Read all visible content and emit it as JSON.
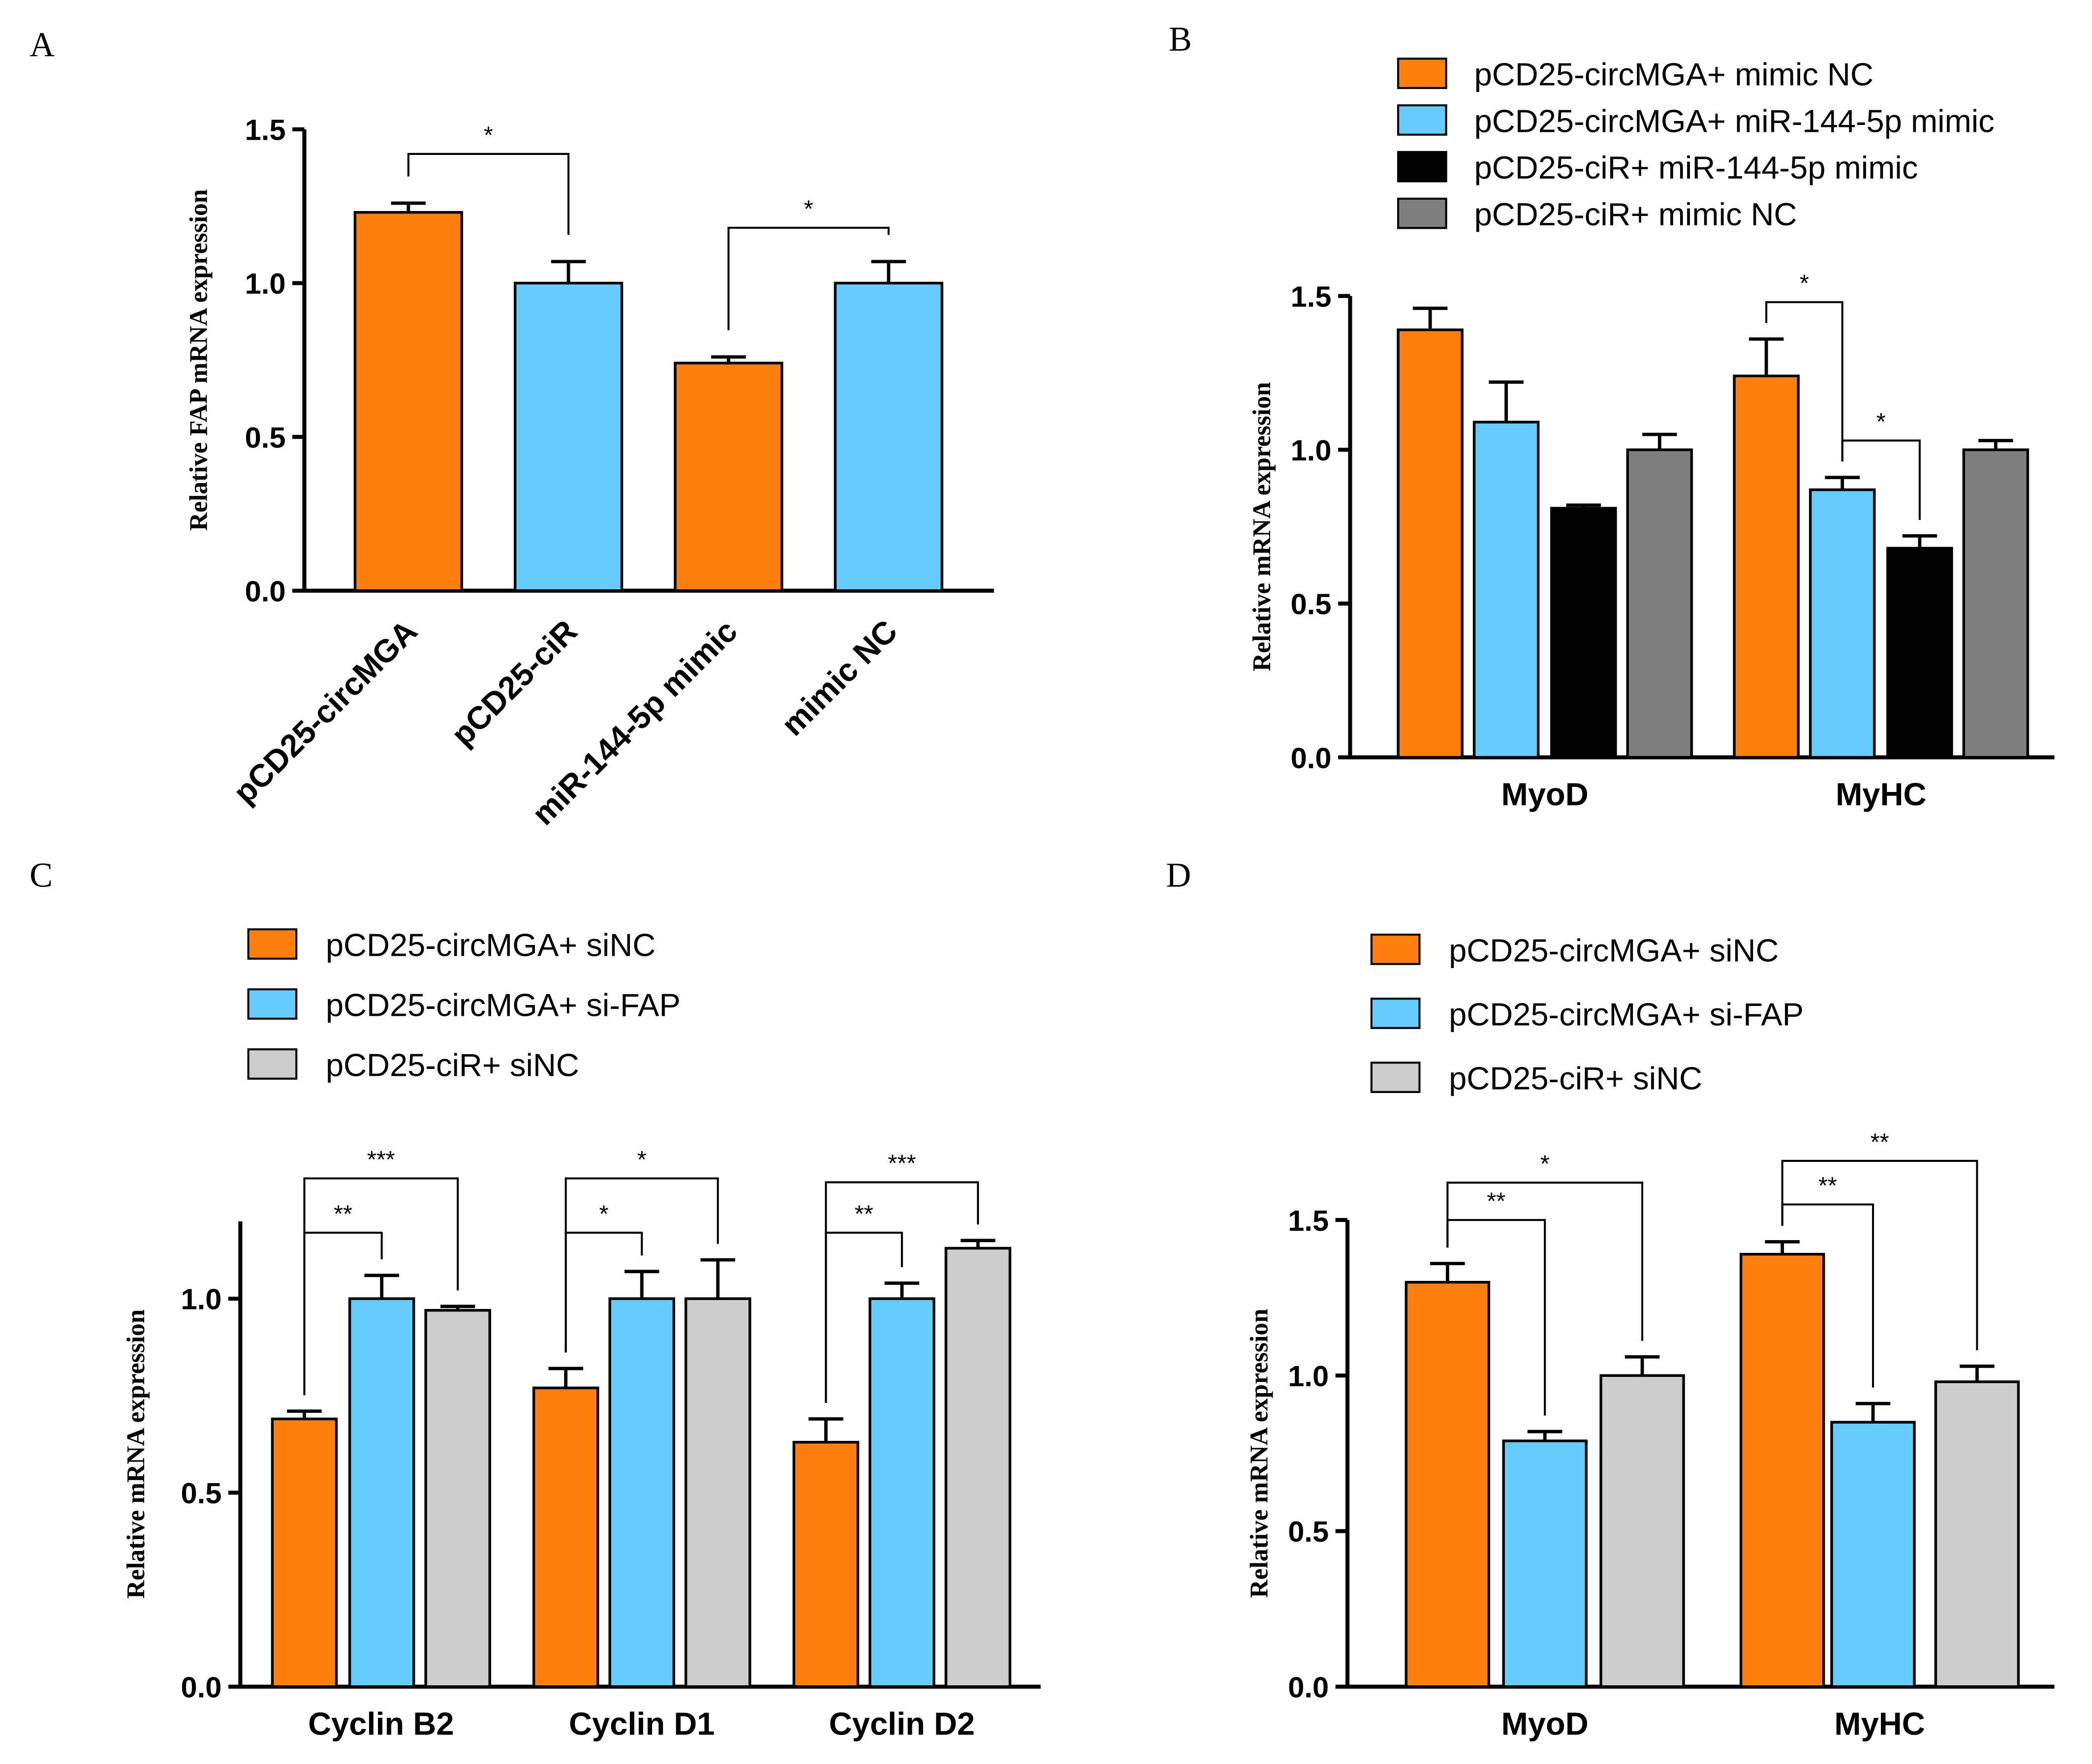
{
  "colors": {
    "orange": "#ff7f0e",
    "blue": "#66ccff",
    "black": "#000000",
    "darkgray": "#7f7f7f",
    "lightgray": "#cccccc"
  },
  "chart_data": [
    {
      "panel": "A",
      "type": "bar",
      "ylabel": "Relative FAP mRNA expression",
      "ylim": [
        0,
        1.5
      ],
      "yticks": [
        "0.0",
        "0.5",
        "1.0",
        "1.5"
      ],
      "categories": [
        "pCD25-circMGA",
        "pCD25-ciR",
        "miR-144-5p mimic",
        "mimic NC"
      ],
      "values": [
        1.23,
        1.0,
        0.74,
        1.0
      ],
      "errors": [
        0.03,
        0.07,
        0.02,
        0.07
      ],
      "bar_colors": [
        "orange",
        "blue",
        "orange",
        "blue"
      ],
      "significance": [
        {
          "from": 0,
          "to": 1,
          "level": 1.42,
          "label": "*"
        },
        {
          "from": 2,
          "to": 3,
          "level": 1.18,
          "label": "*"
        }
      ]
    },
    {
      "panel": "B",
      "type": "grouped-bar",
      "ylabel": "Relative mRNA expression",
      "ylim": [
        0,
        1.5
      ],
      "yticks": [
        "0.0",
        "0.5",
        "1.0",
        "1.5"
      ],
      "categories": [
        "MyoD",
        "MyHC"
      ],
      "series": [
        {
          "name": "pCD25-circMGA+ mimic NC",
          "color": "orange",
          "values": [
            1.39,
            1.24
          ],
          "errors": [
            0.07,
            0.12
          ]
        },
        {
          "name": "pCD25-circMGA+ miR-144-5p mimic",
          "color": "blue",
          "values": [
            1.09,
            0.87
          ],
          "errors": [
            0.13,
            0.04
          ]
        },
        {
          "name": "pCD25-ciR+ miR-144-5p mimic",
          "color": "black",
          "values": [
            0.81,
            0.68
          ],
          "errors": [
            0.01,
            0.04
          ]
        },
        {
          "name": "pCD25-ciR+ mimic NC",
          "color": "darkgray",
          "values": [
            1.0,
            1.0
          ],
          "errors": [
            0.05,
            0.03
          ]
        }
      ],
      "significance": [
        {
          "group": 1,
          "from": 0,
          "to": 1,
          "level": 1.48,
          "label": "*"
        },
        {
          "group": 1,
          "from": 1,
          "to": 2,
          "level": 1.03,
          "label": "*"
        }
      ]
    },
    {
      "panel": "C",
      "type": "grouped-bar",
      "ylabel": "Relative mRNA expression",
      "ylim": [
        0,
        1.2
      ],
      "yticks": [
        "0.0",
        "0.5",
        "1.0"
      ],
      "categories": [
        "Cyclin B2",
        "Cyclin D1",
        "Cyclin D2"
      ],
      "series": [
        {
          "name": "pCD25-circMGA+ siNC",
          "color": "orange",
          "values": [
            0.69,
            0.77,
            0.63
          ],
          "errors": [
            0.02,
            0.05,
            0.06
          ]
        },
        {
          "name": "pCD25-circMGA+ si-FAP",
          "color": "blue",
          "values": [
            1.0,
            1.0,
            1.0
          ],
          "errors": [
            0.06,
            0.07,
            0.04
          ]
        },
        {
          "name": "pCD25-ciR+ siNC",
          "color": "lightgray",
          "values": [
            0.97,
            1.0,
            1.13
          ],
          "errors": [
            0.01,
            0.1,
            0.02
          ]
        }
      ],
      "significance": [
        {
          "group": 0,
          "from": 0,
          "to": 1,
          "level": 1.17,
          "label": "**"
        },
        {
          "group": 0,
          "from": 0,
          "to": 2,
          "level": 1.31,
          "label": "***"
        },
        {
          "group": 1,
          "from": 0,
          "to": 1,
          "level": 1.17,
          "label": "*"
        },
        {
          "group": 1,
          "from": 0,
          "to": 2,
          "level": 1.31,
          "label": "*"
        },
        {
          "group": 2,
          "from": 0,
          "to": 1,
          "level": 1.17,
          "label": "**"
        },
        {
          "group": 2,
          "from": 0,
          "to": 2,
          "level": 1.3,
          "label": "***"
        }
      ]
    },
    {
      "panel": "D",
      "type": "grouped-bar",
      "ylabel": "Relative mRNA expression",
      "ylim": [
        0,
        1.5
      ],
      "yticks": [
        "0.0",
        "0.5",
        "1.0",
        "1.5"
      ],
      "categories": [
        "MyoD",
        "MyHC"
      ],
      "series": [
        {
          "name": "pCD25-circMGA+ siNC",
          "color": "orange",
          "values": [
            1.3,
            1.39
          ],
          "errors": [
            0.06,
            0.04
          ]
        },
        {
          "name": "pCD25-circMGA+ si-FAP",
          "color": "blue",
          "values": [
            0.79,
            0.85
          ],
          "errors": [
            0.03,
            0.06
          ]
        },
        {
          "name": "pCD25-ciR+ siNC",
          "color": "lightgray",
          "values": [
            1.0,
            0.98
          ],
          "errors": [
            0.06,
            0.05
          ]
        }
      ],
      "significance": [
        {
          "group": 0,
          "from": 0,
          "to": 1,
          "level": 1.5,
          "label": "**"
        },
        {
          "group": 0,
          "from": 0,
          "to": 2,
          "level": 1.62,
          "label": "*"
        },
        {
          "group": 1,
          "from": 0,
          "to": 1,
          "level": 1.55,
          "label": "**"
        },
        {
          "group": 1,
          "from": 0,
          "to": 2,
          "level": 1.69,
          "label": "**"
        }
      ]
    }
  ]
}
